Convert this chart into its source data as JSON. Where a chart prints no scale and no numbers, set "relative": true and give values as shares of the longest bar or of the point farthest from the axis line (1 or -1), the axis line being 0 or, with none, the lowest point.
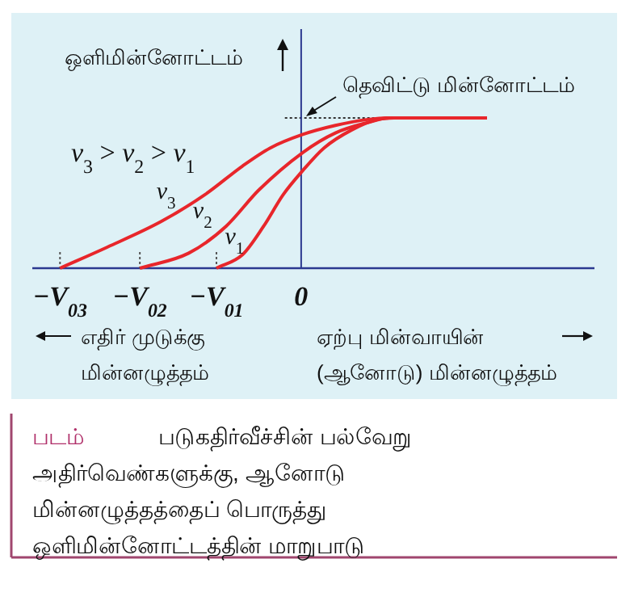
{
  "chart_data": {
    "type": "line",
    "relative": true,
    "ylabel": "ஒளிமின்னோட்டம்",
    "xlim": [
      -3.3,
      3.6
    ],
    "xticks": [
      {
        "value": -2.96,
        "label": "−*V*$_{03}$"
      },
      {
        "value": -1.98,
        "label": "−*V*$_{02}$"
      },
      {
        "value": -1.04,
        "label": "−*V*$_{01}$"
      },
      0
    ],
    "series": [
      {
        "name": "*v*$_{3}$",
        "color": "#e8262b",
        "x": [
          -2.96,
          -2.38,
          -1.72,
          -1.18,
          -0.72,
          -0.38,
          0.02,
          0.42,
          0.82,
          1.08,
          2.28
        ],
        "values": [
          0,
          0.14,
          0.31,
          0.49,
          0.68,
          0.8,
          0.89,
          0.95,
          0.99,
          1,
          1
        ]
      },
      {
        "name": "*v*$_{2}$",
        "color": "#e8262b",
        "x": [
          -1.98,
          -1.38,
          -0.92,
          -0.52,
          0.02,
          0.42,
          0.82,
          1.08,
          2.28
        ],
        "values": [
          0,
          0.1,
          0.28,
          0.52,
          0.77,
          0.9,
          0.97,
          1,
          1
        ]
      },
      {
        "name": "*v*$_{1}$",
        "color": "#e8262b",
        "x": [
          -1.04,
          -0.72,
          -0.46,
          -0.22,
          0.02,
          0.28,
          0.62,
          0.94,
          1.14,
          2.28
        ],
        "values": [
          0,
          0.09,
          0.28,
          0.49,
          0.65,
          0.8,
          0.92,
          0.99,
          1,
          1
        ]
      }
    ],
    "ref_lines": [
      {
        "axis": "y",
        "value": 1,
        "line_style": "dotted",
        "color": "#333333"
      },
      {
        "axis": "x",
        "value": 0,
        "color": "#2b3990"
      }
    ],
    "annotations": [
      {
        "text": "தெவிட்டு மின்னோட்டம்",
        "x": 0,
        "y": 1
      },
      "*v*$_{3}$ > *v*$_{2}$ > *v*$_{1}$",
      "எதிர் முடுக்கு மின்னழுத்தம்",
      "ஏற்பு மின்வாயின் (ஆனோடு) மின்னழுத்தம்",
      "படம்",
      "படுகதிர்வீச்சின் பல்வேறு அதிர்வெண்களுக்கு, ஆனோடு மின்னழுத்தத்தைப் பொருத்து ஒளிமின்னோட்டத்தின் மாறுபாடு"
    ]
  }
}
